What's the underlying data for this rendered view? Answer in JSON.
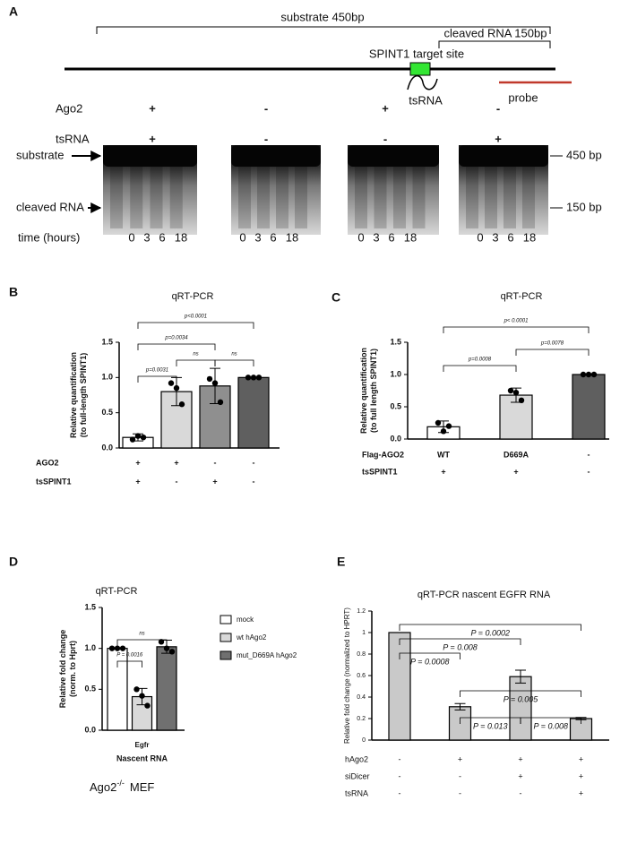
{
  "panel_a": {
    "label": "A",
    "substrate_bracket": "substrate 450bp",
    "cleaved_bracket": "cleaved RNA 150bp",
    "target_site": "SPINT1 target site",
    "tsrna_label": "tsRNA",
    "probe_label": "probe",
    "rows": [
      {
        "name": "Ago2",
        "marks": [
          "+",
          "-",
          "+",
          "-"
        ]
      },
      {
        "name": "tsRNA",
        "marks": [
          "+",
          "-",
          "-",
          "+"
        ]
      }
    ],
    "band_labels": [
      "substrate",
      "cleaved RNA"
    ],
    "size_labels": [
      "450 bp",
      "150 bp"
    ],
    "time_label": "time (hours)",
    "times": [
      0,
      3,
      6,
      18
    ]
  },
  "chart_data": [
    {
      "type": "bar",
      "label": "B",
      "title": "qRT-PCR",
      "y_label": [
        "Relative quantification",
        "(to full-length SPINT1)"
      ],
      "values": [
        0.15,
        0.8,
        0.88,
        1.0
      ],
      "errors": [
        0.05,
        0.2,
        0.25,
        0.0
      ],
      "points": [
        [
          0.12,
          0.17,
          0.15
        ],
        [
          0.92,
          0.85,
          0.62
        ],
        [
          0.98,
          0.92,
          0.65
        ],
        [
          1.0,
          1.0,
          1.0
        ]
      ],
      "colors": [
        "#ffffff",
        "#d9d9d9",
        "#8f8f8f",
        "#5f5f5f"
      ],
      "ylim": [
        0,
        1.5
      ],
      "yticks": [
        {
          "value": 0,
          "label": "0.0"
        },
        0.5,
        {
          "value": 1,
          "label": "1.0"
        },
        1.5
      ],
      "conditions": [
        {
          "name": "AGO2",
          "marks": [
            "+",
            "+",
            "-",
            "-"
          ]
        },
        {
          "name": "tsSPINT1",
          "marks": [
            "+",
            "-",
            "+",
            "-"
          ]
        }
      ],
      "comparisons": [
        {
          "pair": [
            0,
            1
          ],
          "label": "p=0.0031"
        },
        {
          "pair": [
            0,
            2
          ],
          "label": "p=0.0034"
        },
        {
          "pair": [
            0,
            3
          ],
          "label": "p<0.0001"
        },
        {
          "pair": [
            1,
            2
          ],
          "label": "ns"
        },
        {
          "pair": [
            2,
            3
          ],
          "label": "ns"
        }
      ]
    },
    {
      "type": "bar",
      "label": "C",
      "title": "qRT-PCR",
      "y_label": [
        "Relative quantification",
        "(to full length SPINT1)"
      ],
      "values": [
        0.19,
        0.68,
        1.0
      ],
      "errors": [
        0.09,
        0.11,
        0.01
      ],
      "points": [
        [
          0.25,
          0.12,
          0.2
        ],
        [
          0.75,
          0.72,
          0.6
        ],
        [
          1.0,
          1.0,
          1.0
        ]
      ],
      "colors": [
        "#ffffff",
        "#d9d9d9",
        "#5f5f5f"
      ],
      "ylim": [
        0,
        1.5
      ],
      "yticks": [
        {
          "value": 0,
          "label": "0.0"
        },
        0.5,
        {
          "value": 1,
          "label": "1.0"
        },
        1.5
      ],
      "conditions": [
        {
          "name": "Flag-AGO2",
          "marks": [
            "WT",
            "D669A",
            "-"
          ]
        },
        {
          "name": "tsSPINT1",
          "marks": [
            "+",
            "+",
            "-"
          ]
        }
      ],
      "comparisons": [
        {
          "pair": [
            0,
            1
          ],
          "label": "p=0.0008"
        },
        {
          "pair": [
            0,
            2
          ],
          "label": "p< 0.0001"
        },
        {
          "pair": [
            1,
            2
          ],
          "label": "p=0.0078"
        }
      ]
    },
    {
      "type": "grouped_bar",
      "label": "D",
      "title": "qRT-PCR",
      "y_label": [
        "Relative fold change",
        "(norm. to Hprt)"
      ],
      "categories": [
        "Egfr"
      ],
      "x_label": "Nascent RNA",
      "series": [
        {
          "name": "mock",
          "color": "#ffffff",
          "values": [
            1.0
          ],
          "errors": [
            0.0
          ],
          "points": [
            [
              1.0,
              1.0,
              1.0
            ]
          ]
        },
        {
          "name": "wt hAgo2",
          "color": "#d9d9d9",
          "values": [
            0.41
          ],
          "errors": [
            0.1
          ],
          "points": [
            [
              0.5,
              0.42,
              0.3
            ]
          ]
        },
        {
          "name": "mut_D669A hAgo2",
          "color": "#707070",
          "values": [
            1.02
          ],
          "errors": [
            0.08
          ],
          "points": [
            [
              1.08,
              1.0,
              0.96
            ]
          ]
        }
      ],
      "ylim": [
        0,
        1.5
      ],
      "yticks": [
        {
          "value": 0,
          "label": "0.0"
        },
        0.5,
        {
          "value": 1,
          "label": "1.0"
        },
        1.5
      ],
      "comparisons": [
        {
          "pair": [
            0,
            1
          ],
          "label": "P = 0.0016"
        },
        {
          "pair": [
            0,
            2
          ],
          "label": "ns"
        }
      ],
      "caption": {
        "main": "Ago2",
        "sup": "-/-",
        "rest": "MEF"
      }
    },
    {
      "type": "bar",
      "label": "E",
      "title": "qRT-PCR nascent EGFR RNA",
      "y_label": [
        "Relative fold change (normalized to HPRT)"
      ],
      "values": [
        1.0,
        0.31,
        0.59,
        0.2
      ],
      "errors": [
        0.0,
        0.03,
        0.06,
        0.01
      ],
      "colors": [
        "#c9c9c9",
        "#c9c9c9",
        "#c9c9c9",
        "#c9c9c9"
      ],
      "ylim": [
        0,
        1.2
      ],
      "yticks": [
        0,
        0.2,
        0.4,
        0.6,
        0.8,
        1,
        1.2
      ],
      "conditions": [
        {
          "name": "hAgo2",
          "marks": [
            "-",
            "+",
            "+",
            "+"
          ]
        },
        {
          "name": "siDicer",
          "marks": [
            "-",
            "-",
            "+",
            "+"
          ]
        },
        {
          "name": "tsRNA",
          "marks": [
            "-",
            "-",
            "-",
            "+"
          ]
        }
      ],
      "comparisons": [
        {
          "pair": [
            0,
            1
          ],
          "label": "P = 0.0008"
        },
        {
          "pair": [
            0,
            2
          ],
          "label": "P = 0.008"
        },
        {
          "pair": [
            0,
            3
          ],
          "label": "P = 0.0002"
        },
        {
          "pair": [
            1,
            3
          ],
          "label": "P = 0.005"
        },
        {
          "pair": [
            1,
            2
          ],
          "label": "P = 0.013"
        },
        {
          "pair": [
            2,
            3
          ],
          "label": "P = 0.008"
        }
      ]
    }
  ]
}
